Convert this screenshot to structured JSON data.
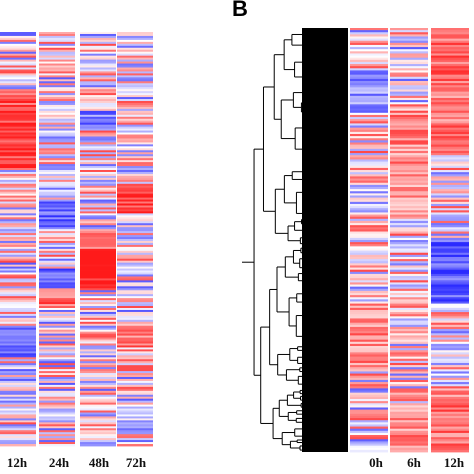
{
  "panels": [
    {
      "id": "A",
      "label": "",
      "columns": [
        "12h",
        "24h",
        "48h",
        "72h"
      ]
    },
    {
      "id": "B",
      "label": "B",
      "columns": [
        "0h",
        "6h",
        "12h"
      ]
    }
  ],
  "chart_data": [
    {
      "type": "heatmap",
      "title": "",
      "columns": [
        "12h",
        "24h",
        "48h",
        "72h"
      ],
      "colormap": {
        "low": "#2b2bff",
        "mid": "#ffffff",
        "high": "#ff1a1a"
      },
      "dendrogram": false
    },
    {
      "type": "heatmap",
      "title": "",
      "columns": [
        "0h",
        "6h",
        "12h"
      ],
      "colormap": {
        "low": "#2b2bff",
        "mid": "#ffffff",
        "high": "#ff1a1a"
      },
      "dendrogram": true
    }
  ]
}
